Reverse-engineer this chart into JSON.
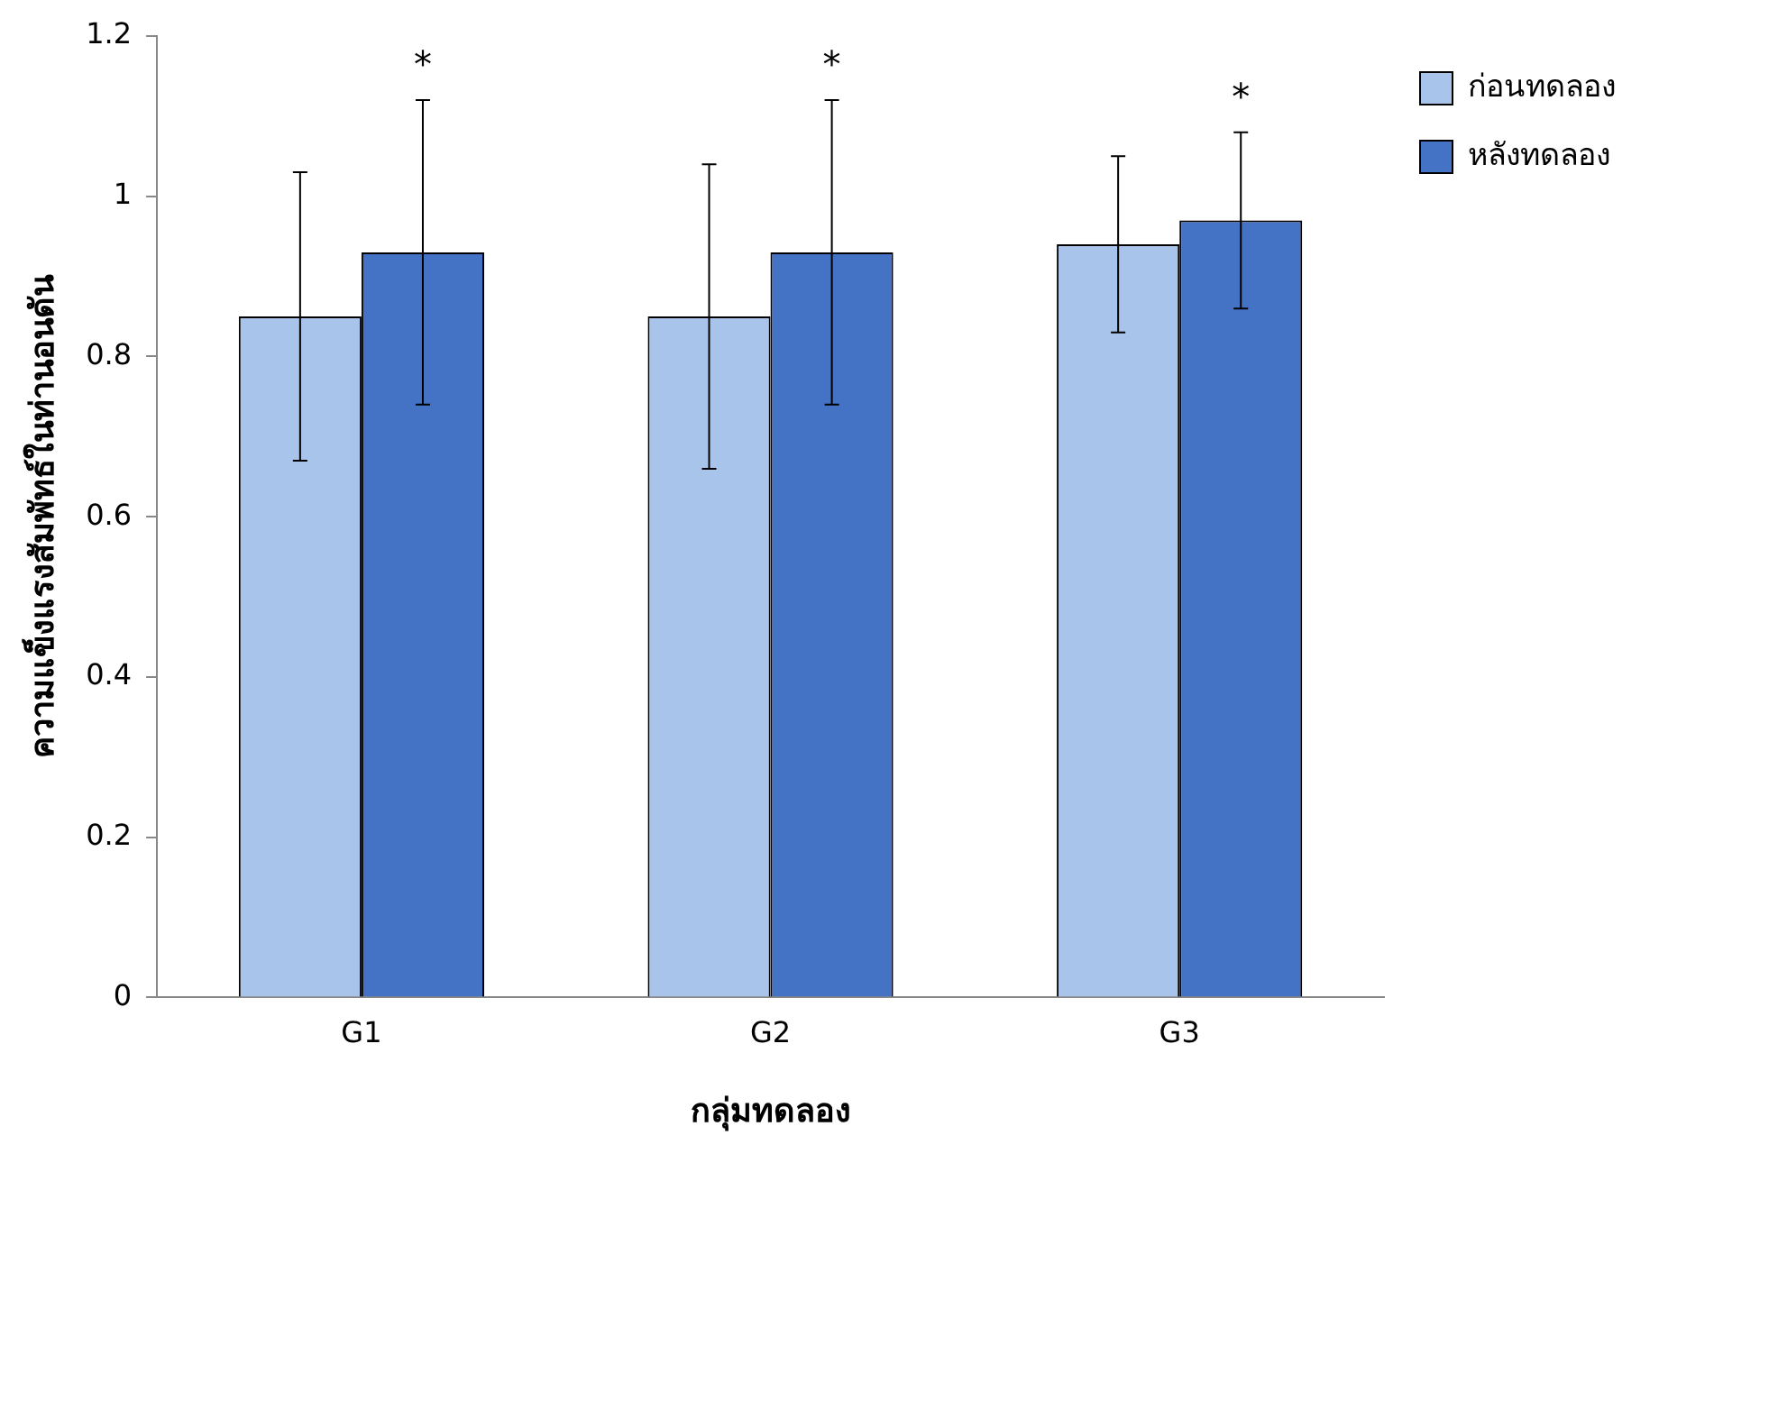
{
  "chart_data": {
    "type": "bar",
    "xlabel": "กลุ่มทดลอง",
    "ylabel": "ความแข็งแรงสัมพัทธ์ในท่านอนดัน",
    "categories": [
      "G1",
      "G2",
      "G3"
    ],
    "series": [
      {
        "name": "ก่อนทดลอง",
        "color": "#a9c4eb",
        "values": [
          0.85,
          0.85,
          0.94
        ],
        "errors": [
          0.18,
          0.19,
          0.11
        ]
      },
      {
        "name": "หลังทดลอง",
        "color": "#4472c4",
        "values": [
          0.93,
          0.93,
          0.97
        ],
        "errors": [
          0.19,
          0.19,
          0.11
        ]
      }
    ],
    "ylim": [
      0,
      1.2
    ],
    "yticks": [
      0,
      0.2,
      0.4,
      0.6,
      0.8,
      1,
      1.2
    ],
    "grid": false,
    "legend": "right",
    "annotations": [
      "*",
      "*",
      "*"
    ]
  }
}
